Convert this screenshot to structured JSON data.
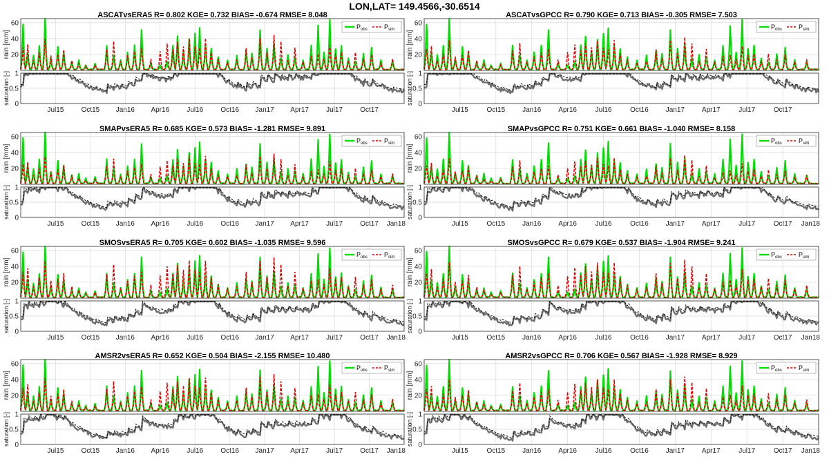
{
  "figure": {
    "title": "LON,LAT= 149.4566,-30.6514"
  },
  "chart_data": {
    "type": "line",
    "title": "LON,LAT= 149.4566,-30.6514",
    "x_tick_labels": [
      "Jul15",
      "Oct15",
      "Jan16",
      "Apr16",
      "Jul16",
      "Oct16",
      "Jan17",
      "Apr17",
      "Jul17",
      "Oct17",
      "Jan18"
    ],
    "x_range_months": [
      "Apr15",
      "Jan18"
    ],
    "rain_ylabel": "rain [mm]",
    "rain_ylim": [
      0,
      65
    ],
    "rain_yticks": [
      "20",
      "40",
      "60"
    ],
    "sat_ylabel": "saturation [-]",
    "sat_ylim": [
      0,
      1
    ],
    "sat_yticks": [
      "0",
      "0.5",
      "1"
    ],
    "legend": {
      "position": "top-right",
      "obs_main": "P",
      "obs_sub": "obs",
      "sim_main": "P",
      "sim_sub": "sim"
    },
    "colors": {
      "obs": "#00e000",
      "sim": "#e00000",
      "sat_line": "#6e6e6e",
      "sat_dash": "#000000"
    },
    "grid": true,
    "panels": [
      {
        "name": "ASCATvsERA5",
        "stats": "R= 0.802 KGE= 0.732 BIAS= -0.674 RMSE= 8.048",
        "show_last_tick": false,
        "sat_level": 0.45
      },
      {
        "name": "ASCATvsGPCC",
        "stats": "R= 0.790 KGE= 0.713 BIAS= -0.305 RMSE= 7.503",
        "show_last_tick": false,
        "sat_level": 0.45
      },
      {
        "name": "SMAPvsERA5",
        "stats": "R= 0.685 KGE= 0.573 BIAS= -1.281 RMSE= 9.891",
        "show_last_tick": true,
        "sat_level": 0.35
      },
      {
        "name": "SMAPvsGPCC",
        "stats": "R= 0.751 KGE= 0.661 BIAS= -1.040 RMSE= 8.158",
        "show_last_tick": true,
        "sat_level": 0.35
      },
      {
        "name": "SMOSvsERA5",
        "stats": "R= 0.705 KGE= 0.602 BIAS= -1.035 RMSE= 9.596",
        "show_last_tick": true,
        "sat_level": 0.3
      },
      {
        "name": "SMOSvsGPCC",
        "stats": "R= 0.679 KGE= 0.537 BIAS= -1.904 RMSE= 9.241",
        "show_last_tick": true,
        "sat_level": 0.3
      },
      {
        "name": "AMSR2vsERA5",
        "stats": "R= 0.652 KGE= 0.504 BIAS= -2.155 RMSE= 10.480",
        "show_last_tick": true,
        "sat_level": 0.25
      },
      {
        "name": "AMSR2vsGPCC",
        "stats": "R= 0.706 KGE= 0.567 BIAS= -1.928 RMSE= 8.929",
        "show_last_tick": true,
        "sat_level": 0.25
      }
    ],
    "rain_events": [
      {
        "month": 0.2,
        "obs": 57,
        "sim": 28
      },
      {
        "month": 0.6,
        "obs": 22,
        "sim": 32
      },
      {
        "month": 1.1,
        "obs": 18,
        "sim": 12
      },
      {
        "month": 1.6,
        "obs": 30,
        "sim": 22
      },
      {
        "month": 2.1,
        "obs": 65,
        "sim": 40
      },
      {
        "month": 2.6,
        "obs": 14,
        "sim": 18
      },
      {
        "month": 3.2,
        "obs": 28,
        "sim": 20
      },
      {
        "month": 3.7,
        "obs": 22,
        "sim": 26
      },
      {
        "month": 4.4,
        "obs": 10,
        "sim": 12
      },
      {
        "month": 5.0,
        "obs": 12,
        "sim": 8
      },
      {
        "month": 5.6,
        "obs": 6,
        "sim": 4
      },
      {
        "month": 6.4,
        "obs": 8,
        "sim": 6
      },
      {
        "month": 7.4,
        "obs": 30,
        "sim": 26
      },
      {
        "month": 8.0,
        "obs": 18,
        "sim": 36
      },
      {
        "month": 8.6,
        "obs": 12,
        "sim": 10
      },
      {
        "month": 9.2,
        "obs": 22,
        "sim": 18
      },
      {
        "month": 9.8,
        "obs": 30,
        "sim": 24
      },
      {
        "month": 10.4,
        "obs": 50,
        "sim": 28
      },
      {
        "month": 11.2,
        "obs": 8,
        "sim": 14
      },
      {
        "month": 12.0,
        "obs": 6,
        "sim": 24
      },
      {
        "month": 12.6,
        "obs": 10,
        "sim": 34
      },
      {
        "month": 13.1,
        "obs": 30,
        "sim": 26
      },
      {
        "month": 13.5,
        "obs": 42,
        "sim": 36
      },
      {
        "month": 14.0,
        "obs": 22,
        "sim": 30
      },
      {
        "month": 14.5,
        "obs": 38,
        "sim": 40
      },
      {
        "month": 15.0,
        "obs": 45,
        "sim": 30
      },
      {
        "month": 15.4,
        "obs": 52,
        "sim": 28
      },
      {
        "month": 15.9,
        "obs": 30,
        "sim": 40
      },
      {
        "month": 16.4,
        "obs": 26,
        "sim": 22
      },
      {
        "month": 17.0,
        "obs": 16,
        "sim": 14
      },
      {
        "month": 17.8,
        "obs": 12,
        "sim": 10
      },
      {
        "month": 18.6,
        "obs": 18,
        "sim": 12
      },
      {
        "month": 19.4,
        "obs": 24,
        "sim": 28
      },
      {
        "month": 19.9,
        "obs": 20,
        "sim": 16
      },
      {
        "month": 20.6,
        "obs": 50,
        "sim": 40
      },
      {
        "month": 21.2,
        "obs": 26,
        "sim": 22
      },
      {
        "month": 21.8,
        "obs": 32,
        "sim": 44
      },
      {
        "month": 22.4,
        "obs": 14,
        "sim": 36
      },
      {
        "month": 23.0,
        "obs": 18,
        "sim": 12
      },
      {
        "month": 23.6,
        "obs": 16,
        "sim": 28
      },
      {
        "month": 24.3,
        "obs": 12,
        "sim": 10
      },
      {
        "month": 25.0,
        "obs": 30,
        "sim": 18
      },
      {
        "month": 25.6,
        "obs": 55,
        "sim": 20
      },
      {
        "month": 26.1,
        "obs": 22,
        "sim": 14
      },
      {
        "month": 26.6,
        "obs": 62,
        "sim": 32
      },
      {
        "month": 27.1,
        "obs": 26,
        "sim": 20
      },
      {
        "month": 27.6,
        "obs": 30,
        "sim": 22
      },
      {
        "month": 28.2,
        "obs": 14,
        "sim": 12
      },
      {
        "month": 28.8,
        "obs": 10,
        "sim": 22
      },
      {
        "month": 29.5,
        "obs": 20,
        "sim": 14
      },
      {
        "month": 30.2,
        "obs": 28,
        "sim": 20
      },
      {
        "month": 31.0,
        "obs": 12,
        "sim": 10
      },
      {
        "month": 32.0,
        "obs": 10,
        "sim": 14
      }
    ]
  }
}
